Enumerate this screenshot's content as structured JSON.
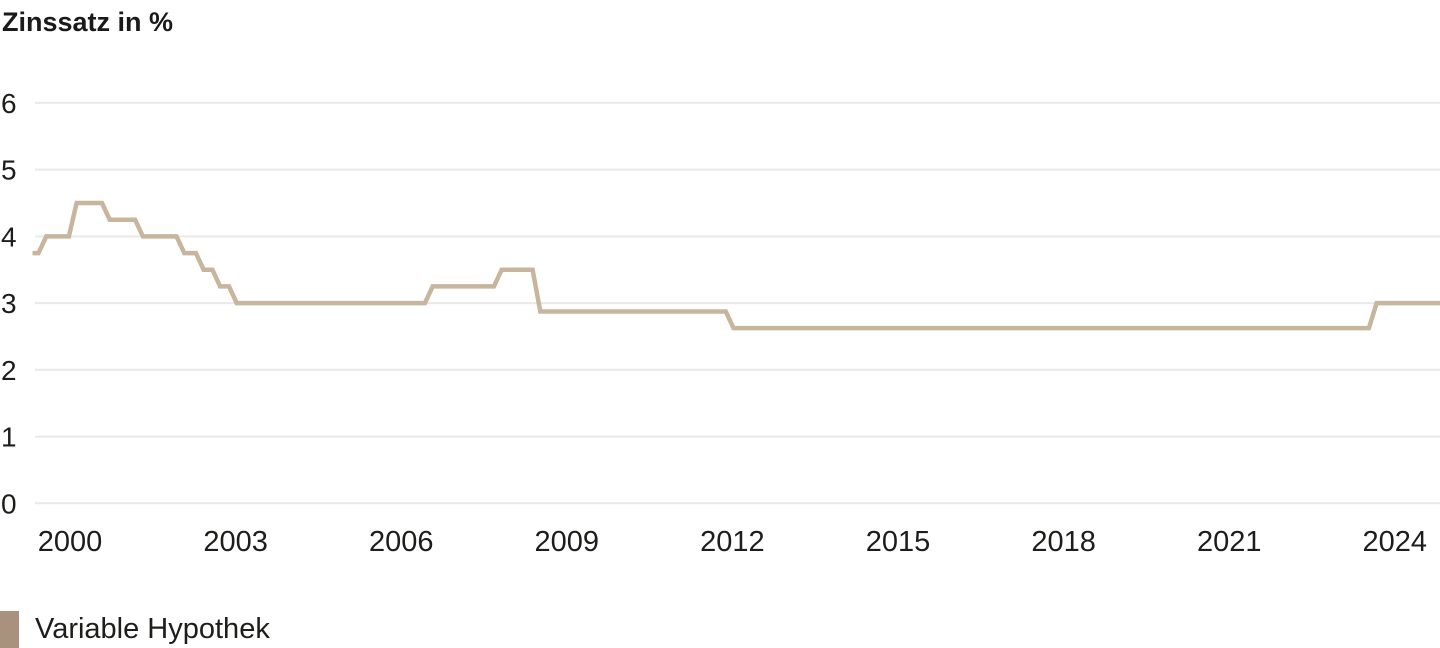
{
  "chart": {
    "title": "Zinssatz in %",
    "legend": [
      {
        "label": "Variable Hypothek",
        "swatch_color": "#a8917d"
      }
    ]
  },
  "chart_data": {
    "type": "line",
    "step": true,
    "title": "Zinssatz in %",
    "ylabel": "Zinssatz in %",
    "xlabel": "",
    "xlim": [
      1999.32,
      2024.85
    ],
    "ylim": [
      0,
      6
    ],
    "yticks": [
      6,
      5,
      4,
      3,
      2,
      1,
      0
    ],
    "xticks": [
      2000,
      2003,
      2006,
      2009,
      2012,
      2015,
      2018,
      2021,
      2024
    ],
    "grid": "horizontal",
    "grid_color": "#e9e9e9",
    "text_color": "#1d1d1b",
    "legend_position": "bottom-left",
    "series": [
      {
        "name": "Variable Hypothek",
        "line_color": "#c8b59d",
        "swatch_color": "#a8917d",
        "points": [
          [
            1999.32,
            3.75
          ],
          [
            1999.5,
            4.0
          ],
          [
            2000.05,
            4.5
          ],
          [
            2000.65,
            4.25
          ],
          [
            2001.25,
            4.0
          ],
          [
            2002.0,
            3.75
          ],
          [
            2002.35,
            3.5
          ],
          [
            2002.65,
            3.25
          ],
          [
            2002.95,
            3.0
          ],
          [
            2006.5,
            3.25
          ],
          [
            2007.75,
            3.5
          ],
          [
            2008.45,
            2.875
          ],
          [
            2011.95,
            2.625
          ],
          [
            2023.6,
            3.0
          ]
        ],
        "end_year": 2024.85
      }
    ]
  }
}
